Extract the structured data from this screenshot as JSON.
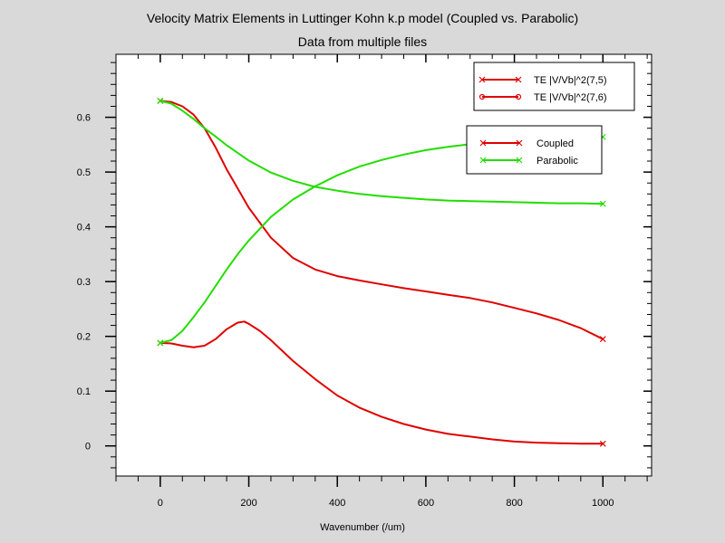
{
  "chart_data": {
    "type": "line",
    "title": "Velocity Matrix Elements in Luttinger Kohn k.p model (Coupled vs. Parabolic)",
    "subtitle": "Data from multiple files",
    "xlabel": "Wavenumber (/um)",
    "ylabel": "",
    "xlim": [
      -100,
      1110
    ],
    "ylim": [
      -0.055,
      0.715
    ],
    "x_ticks": [
      0,
      200,
      400,
      600,
      800,
      1000
    ],
    "y_ticks": [
      0,
      0.1,
      0.2,
      0.3,
      0.4,
      0.5,
      0.6
    ],
    "grid": false,
    "legend_top": {
      "placement": "top-right",
      "entries": [
        {
          "label": "TE |V/Vb|^2(7,5)",
          "color": "#e00000",
          "marker": "x"
        },
        {
          "label": "TE |V/Vb|^2(7,6)",
          "color": "#e00000",
          "marker": "o"
        }
      ]
    },
    "legend_bottom": {
      "placement": "right",
      "entries": [
        {
          "label": "Coupled",
          "color": "#e00000"
        },
        {
          "label": "Parabolic",
          "color": "#22dd00"
        }
      ]
    },
    "series": [
      {
        "group": "Coupled",
        "subband": "(7,5)",
        "color": "#e00000",
        "x": [
          0,
          25,
          50,
          75,
          100,
          125,
          150,
          175,
          200,
          250,
          300,
          350,
          400,
          450,
          500,
          550,
          600,
          650,
          700,
          750,
          800,
          850,
          900,
          950,
          1000
        ],
        "y": [
          0.63,
          0.628,
          0.62,
          0.605,
          0.58,
          0.545,
          0.505,
          0.47,
          0.435,
          0.38,
          0.343,
          0.322,
          0.31,
          0.302,
          0.295,
          0.288,
          0.282,
          0.276,
          0.27,
          0.262,
          0.252,
          0.242,
          0.23,
          0.215,
          0.195
        ]
      },
      {
        "group": "Coupled",
        "subband": "(7,6)",
        "color": "#e00000",
        "x": [
          0,
          25,
          50,
          75,
          100,
          125,
          150,
          175,
          190,
          200,
          225,
          250,
          300,
          350,
          400,
          450,
          500,
          550,
          600,
          650,
          700,
          750,
          800,
          850,
          900,
          950,
          1000
        ],
        "y": [
          0.188,
          0.187,
          0.183,
          0.18,
          0.183,
          0.195,
          0.213,
          0.225,
          0.227,
          0.223,
          0.21,
          0.193,
          0.155,
          0.122,
          0.092,
          0.07,
          0.053,
          0.04,
          0.03,
          0.022,
          0.017,
          0.012,
          0.008,
          0.006,
          0.005,
          0.004,
          0.004
        ]
      },
      {
        "group": "Parabolic",
        "subband": "(7,5)",
        "color": "#22dd00",
        "x": [
          0,
          25,
          50,
          75,
          100,
          125,
          150,
          175,
          200,
          250,
          300,
          350,
          400,
          450,
          500,
          550,
          600,
          650,
          700,
          750,
          800,
          850,
          900,
          950,
          1000
        ],
        "y": [
          0.63,
          0.625,
          0.612,
          0.597,
          0.58,
          0.565,
          0.549,
          0.535,
          0.521,
          0.499,
          0.484,
          0.473,
          0.466,
          0.46,
          0.456,
          0.453,
          0.45,
          0.448,
          0.447,
          0.446,
          0.445,
          0.444,
          0.443,
          0.443,
          0.442
        ]
      },
      {
        "group": "Parabolic",
        "subband": "(7,6)",
        "color": "#22dd00",
        "x": [
          0,
          25,
          50,
          75,
          100,
          125,
          150,
          175,
          200,
          250,
          300,
          350,
          400,
          450,
          500,
          550,
          600,
          650,
          700,
          750,
          800,
          850,
          900,
          950,
          1000
        ],
        "y": [
          0.188,
          0.193,
          0.21,
          0.235,
          0.262,
          0.292,
          0.322,
          0.35,
          0.375,
          0.418,
          0.45,
          0.474,
          0.494,
          0.51,
          0.522,
          0.532,
          0.54,
          0.546,
          0.551,
          0.555,
          0.558,
          0.56,
          0.562,
          0.563,
          0.564
        ]
      }
    ]
  }
}
